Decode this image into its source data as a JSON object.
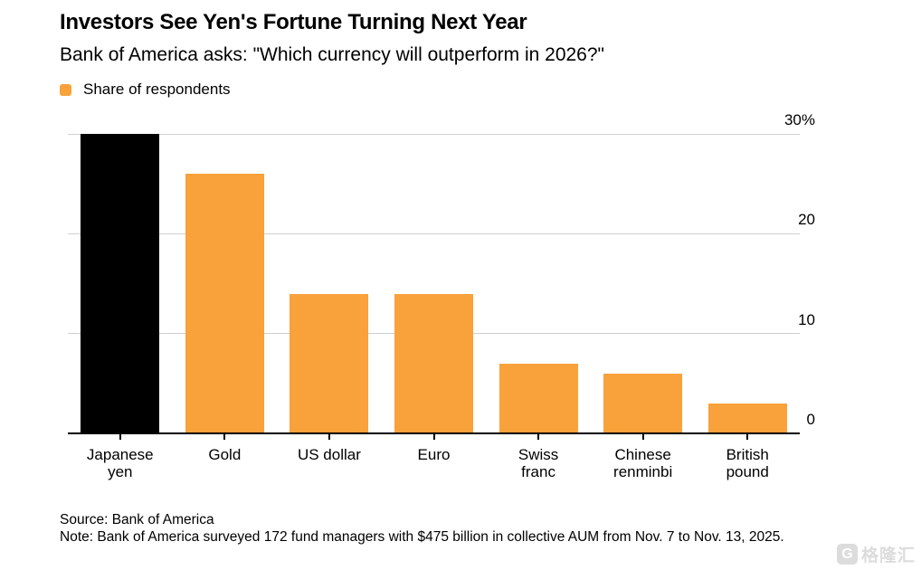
{
  "chart_data": {
    "type": "bar",
    "title": "Investors See Yen's Fortune Turning Next Year",
    "subtitle": "Bank of America asks: \"Which currency will outperform in 2026?\"",
    "legend": [
      {
        "label": "Share of respondents",
        "color": "#F9A13B",
        "position": "top-left"
      }
    ],
    "categories": [
      "Japanese yen",
      "Gold",
      "US dollar",
      "Euro",
      "Swiss franc",
      "Chinese renminbi",
      "British pound"
    ],
    "category_lines": [
      [
        "Japanese",
        "yen"
      ],
      [
        "Gold"
      ],
      [
        "US dollar"
      ],
      [
        "Euro"
      ],
      [
        "Swiss",
        "franc"
      ],
      [
        "Chinese",
        "renminbi"
      ],
      [
        "British",
        "pound"
      ]
    ],
    "values": [
      30,
      26,
      14,
      14,
      7,
      6,
      3
    ],
    "bar_colors": [
      "#000000",
      "#F9A13B",
      "#F9A13B",
      "#F9A13B",
      "#F9A13B",
      "#F9A13B",
      "#F9A13B"
    ],
    "unit": "%",
    "xlabel": "",
    "ylabel": "",
    "ylim": [
      0,
      30
    ],
    "yticks": [
      {
        "label": "30%",
        "value": 30
      },
      {
        "label": "20",
        "value": 20
      },
      {
        "label": "10",
        "value": 10
      },
      {
        "label": "0",
        "value": 0
      }
    ],
    "grid": "horizontal",
    "y_axis_side": "right"
  },
  "footer": {
    "source": "Source: Bank of America",
    "note": "Note: Bank of America surveyed 172 fund managers with $475 billion in collective AUM from Nov. 7 to Nov. 13, 2025."
  },
  "watermark": {
    "icon": "G",
    "text": "格隆汇"
  }
}
